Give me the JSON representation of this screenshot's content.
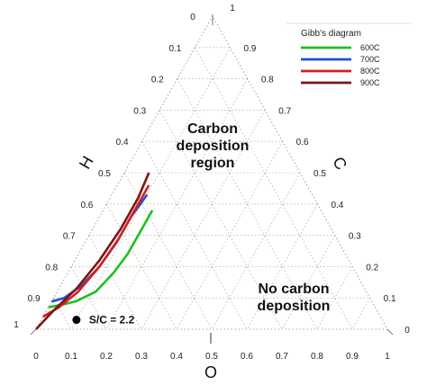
{
  "chart_data": {
    "type": "line",
    "subtype": "ternary",
    "axes": {
      "left": "H",
      "right": "C",
      "bottom": "O"
    },
    "axis_ticks": [
      "0",
      "0.1",
      "0.2",
      "0.3",
      "0.4",
      "0.5",
      "0.6",
      "0.7",
      "0.8",
      "0.9",
      "1"
    ],
    "grid": true,
    "legend": {
      "title": "Gibb's diagram",
      "position": "top-right"
    },
    "series": [
      {
        "name": "600C",
        "color": "#1fbf1f",
        "points": [
          {
            "H": 0.93,
            "C": 0.07,
            "O": 0.0
          },
          {
            "H": 0.88,
            "C": 0.08,
            "O": 0.04
          },
          {
            "H": 0.84,
            "C": 0.09,
            "O": 0.07
          },
          {
            "H": 0.77,
            "C": 0.12,
            "O": 0.11
          },
          {
            "H": 0.69,
            "C": 0.18,
            "O": 0.13
          },
          {
            "H": 0.62,
            "C": 0.24,
            "O": 0.14
          },
          {
            "H": 0.55,
            "C": 0.31,
            "O": 0.14
          },
          {
            "H": 0.48,
            "C": 0.38,
            "O": 0.14
          }
        ]
      },
      {
        "name": "700C",
        "color": "#1f4fd1",
        "points": [
          {
            "H": 0.93,
            "C": 0.09,
            "O": 0.0
          },
          {
            "H": 0.87,
            "C": 0.1,
            "O": 0.03
          },
          {
            "H": 0.8,
            "C": 0.14,
            "O": 0.06
          },
          {
            "H": 0.72,
            "C": 0.2,
            "O": 0.08
          },
          {
            "H": 0.63,
            "C": 0.28,
            "O": 0.09
          },
          {
            "H": 0.55,
            "C": 0.36,
            "O": 0.09
          },
          {
            "H": 0.47,
            "C": 0.43,
            "O": 0.1
          }
        ]
      },
      {
        "name": "800C",
        "color": "#d42020",
        "points": [
          {
            "H": 0.96,
            "C": 0.04,
            "O": 0.0
          },
          {
            "H": 0.9,
            "C": 0.07,
            "O": 0.03
          },
          {
            "H": 0.82,
            "C": 0.12,
            "O": 0.06
          },
          {
            "H": 0.72,
            "C": 0.2,
            "O": 0.08
          },
          {
            "H": 0.62,
            "C": 0.29,
            "O": 0.09
          },
          {
            "H": 0.54,
            "C": 0.37,
            "O": 0.09
          },
          {
            "H": 0.45,
            "C": 0.46,
            "O": 0.09
          }
        ]
      },
      {
        "name": "900C",
        "color": "#7a1616",
        "points": [
          {
            "H": 1.0,
            "C": 0.0,
            "O": 0.0
          },
          {
            "H": 0.92,
            "C": 0.06,
            "O": 0.02
          },
          {
            "H": 0.82,
            "C": 0.13,
            "O": 0.05
          },
          {
            "H": 0.71,
            "C": 0.22,
            "O": 0.07
          },
          {
            "H": 0.6,
            "C": 0.32,
            "O": 0.08
          },
          {
            "H": 0.5,
            "C": 0.42,
            "O": 0.08
          },
          {
            "H": 0.43,
            "C": 0.5,
            "O": 0.07
          }
        ]
      }
    ],
    "marker": {
      "label": "S/C = 2.2",
      "point": {
        "H": 0.87,
        "C": 0.03,
        "O": 0.1
      }
    },
    "regions": [
      {
        "name": "carbon",
        "line1": "Carbon",
        "line2": "deposition",
        "line3": "region"
      },
      {
        "name": "no-carbon",
        "line1": "No carbon",
        "line2": "deposition"
      }
    ]
  }
}
